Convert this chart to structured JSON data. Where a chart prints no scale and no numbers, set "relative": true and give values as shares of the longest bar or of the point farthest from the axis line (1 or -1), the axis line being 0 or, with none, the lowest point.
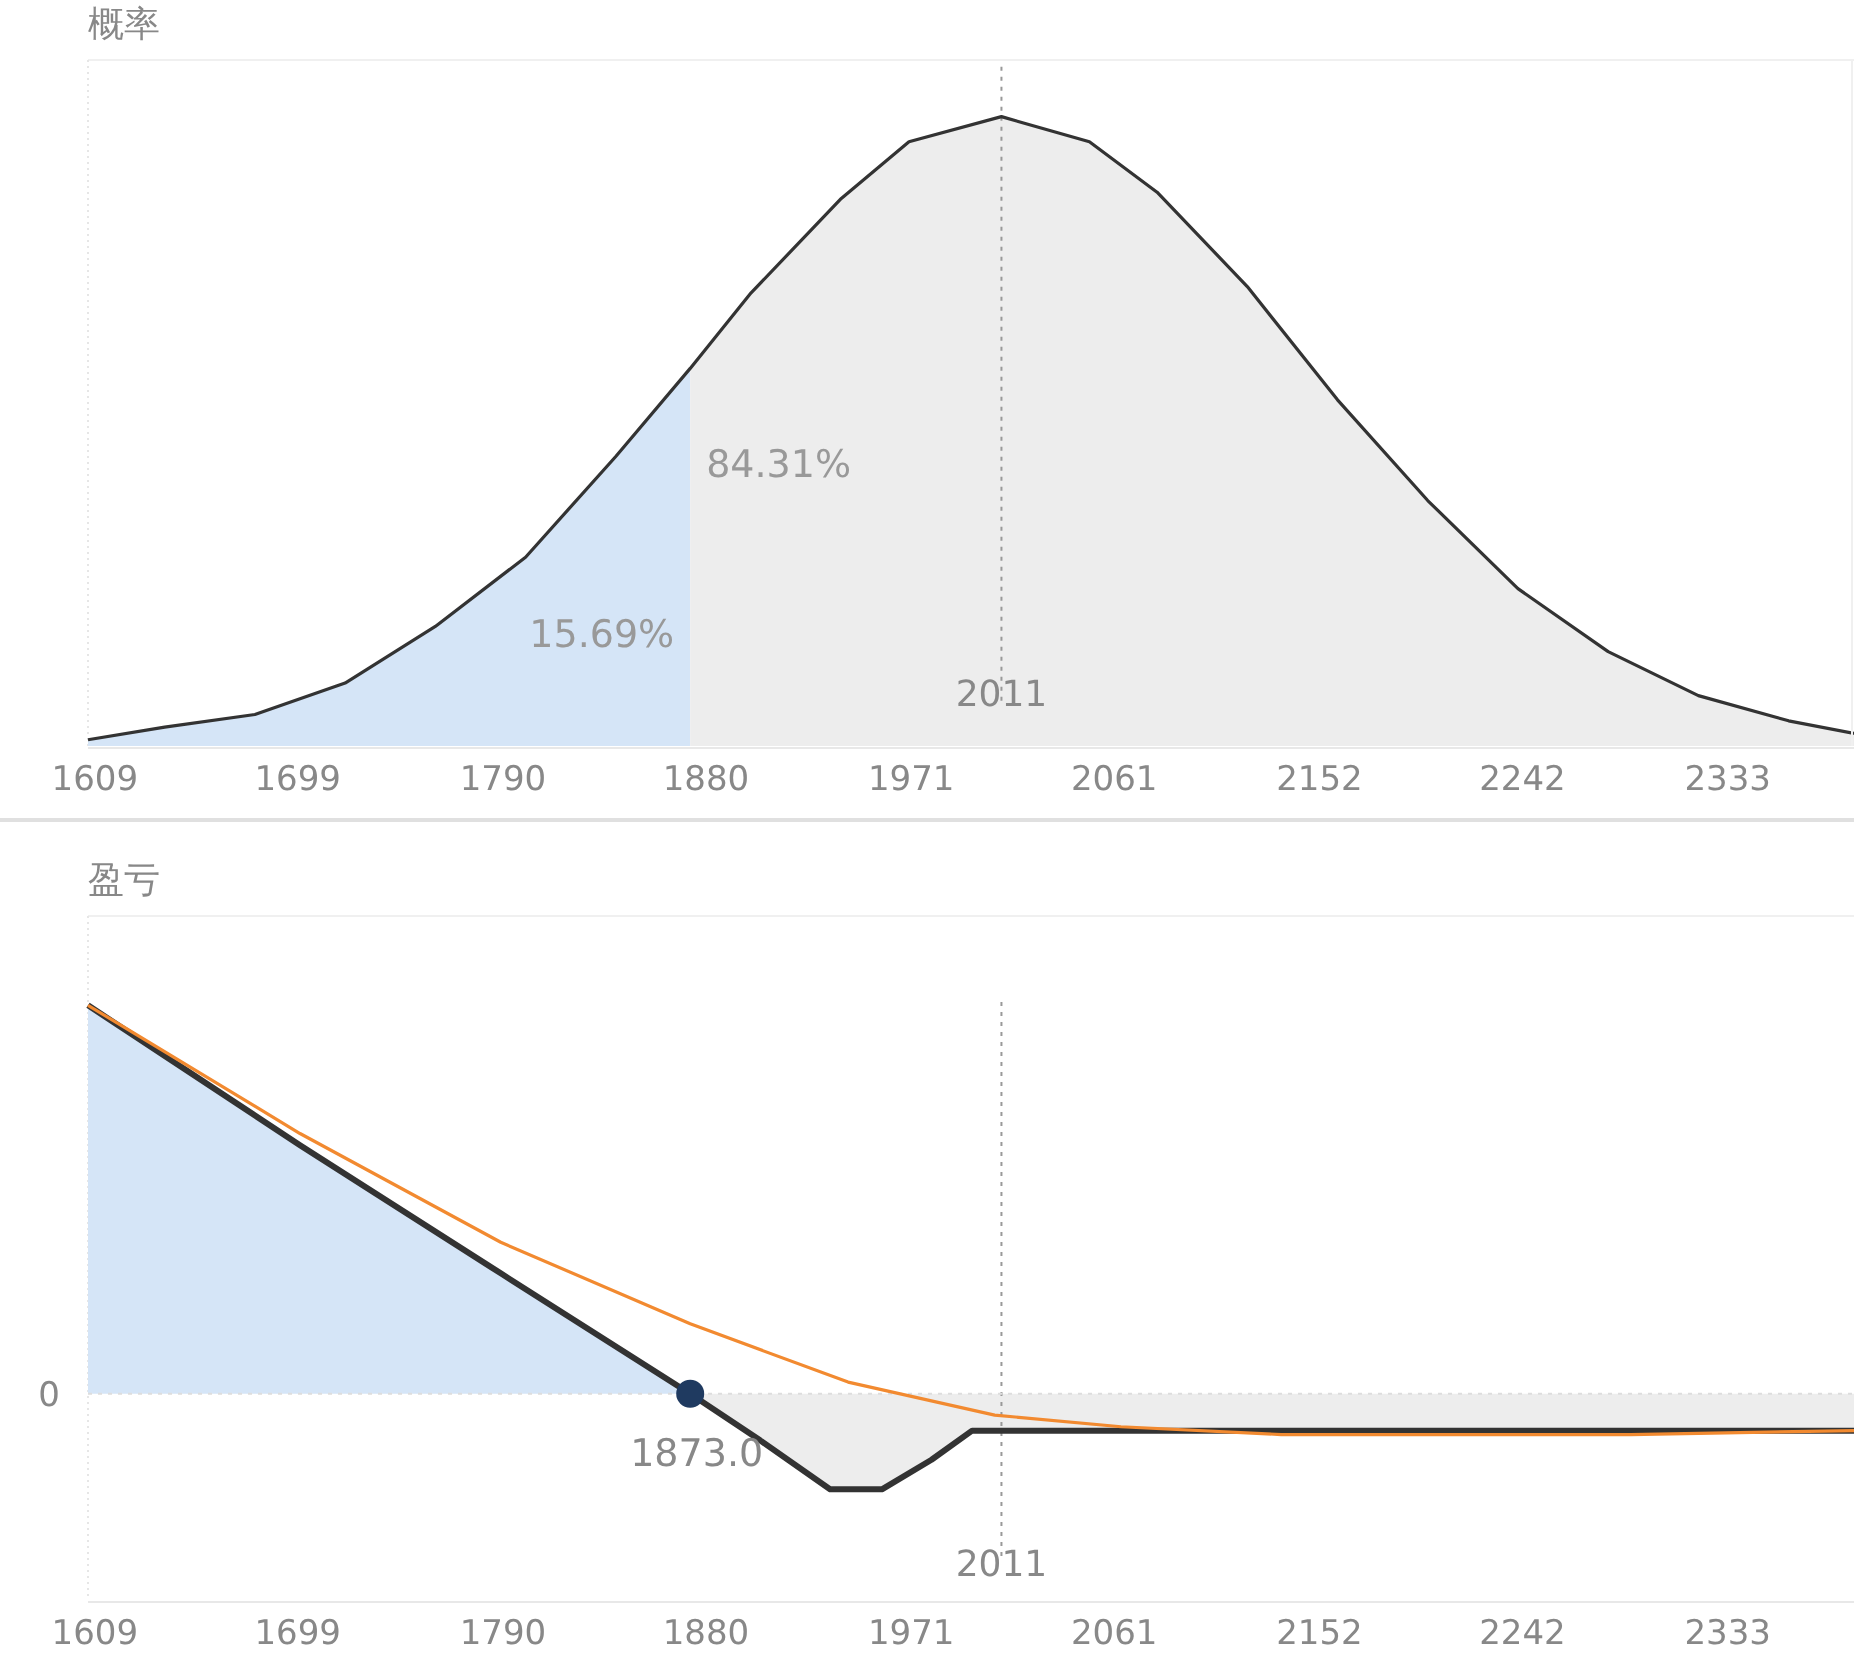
{
  "chart_data": [
    {
      "type": "area",
      "title": "概率",
      "relative": true,
      "xlim": [
        1606,
        2389
      ],
      "xticks": [
        1609,
        1699,
        1790,
        1880,
        1971,
        2061,
        2152,
        2242,
        2333
      ],
      "series": [
        {
          "color": "#d5e5f7",
          "x": [
            1606,
            1640,
            1680,
            1720,
            1760,
            1800,
            1840,
            1873
          ],
          "values": [
            0.01,
            0.03,
            0.05,
            0.1,
            0.19,
            0.3,
            0.46,
            0.6
          ]
        },
        {
          "color": "#ededed",
          "x": [
            1873,
            1900,
            1940,
            1970,
            2011,
            2050,
            2080,
            2120,
            2160,
            2200,
            2240,
            2280,
            2320,
            2360,
            2389
          ],
          "values": [
            0.6,
            0.72,
            0.87,
            0.96,
            1,
            0.96,
            0.88,
            0.73,
            0.55,
            0.39,
            0.25,
            0.15,
            0.08,
            0.04,
            0.02
          ]
        },
        {
          "type": "line",
          "color": "#333333",
          "x": [
            1606,
            1640,
            1680,
            1720,
            1760,
            1800,
            1840,
            1873,
            1900,
            1940,
            1970,
            2011,
            2050,
            2080,
            2120,
            2160,
            2200,
            2240,
            2280,
            2320,
            2360,
            2389
          ],
          "values": [
            0.01,
            0.03,
            0.05,
            0.1,
            0.19,
            0.3,
            0.46,
            0.6,
            0.72,
            0.87,
            0.96,
            1,
            0.96,
            0.88,
            0.73,
            0.55,
            0.39,
            0.25,
            0.15,
            0.08,
            0.04,
            0.02
          ]
        }
      ],
      "ref_lines": [
        {
          "axis": "x",
          "value": 2011,
          "label": "2011",
          "color": "#999999",
          "line_style": "dotted"
        }
      ],
      "annotations": [
        "15.69%",
        "84.31%"
      ]
    },
    {
      "type": "line",
      "title": "盈亏",
      "relative": true,
      "xlim": [
        1606,
        2389
      ],
      "xticks": [
        1609,
        1699,
        1790,
        1880,
        1971,
        2061,
        2152,
        2242,
        2333
      ],
      "series": [
        {
          "type": "area",
          "color": "#d5e5f7",
          "x": [
            1606,
            1700,
            1789,
            1873
          ],
          "values": [
            1,
            0.64,
            0.31,
            0
          ]
        },
        {
          "type": "area",
          "color": "#ededed",
          "x": [
            1873,
            1904,
            1935,
            1958,
            1980,
            1998,
            2389
          ],
          "values": [
            0,
            -0.12,
            -0.246,
            -0.246,
            -0.17,
            -0.095,
            -0.095
          ]
        },
        {
          "color": "#333333",
          "x": [
            1606,
            1700,
            1789,
            1873,
            1904,
            1935,
            1958,
            1980,
            1998,
            2389
          ],
          "values": [
            1,
            0.64,
            0.31,
            0,
            -0.12,
            -0.246,
            -0.246,
            -0.17,
            -0.095,
            -0.095
          ]
        },
        {
          "color": "#f28a30",
          "x": [
            1606,
            1700,
            1789,
            1873,
            1943,
            2008,
            2064,
            2135,
            2290,
            2389
          ],
          "values": [
            1,
            0.67,
            0.39,
            0.18,
            0.03,
            -0.055,
            -0.085,
            -0.105,
            -0.105,
            -0.095
          ]
        },
        {
          "type": "scatter",
          "color": "#1f3a60",
          "marker": "circle",
          "x": [
            1873
          ],
          "values": [
            0
          ]
        }
      ],
      "ref_lines": [
        {
          "axis": "x",
          "value": 2011,
          "label": "2011",
          "color": "#999999",
          "line_style": "dotted"
        },
        {
          "axis": "y",
          "value": 0,
          "label": "0",
          "color": "#dddddd",
          "line_style": "dotted"
        }
      ],
      "annotations": [
        {
          "text": "1873.0",
          "x": 1873,
          "y": 0
        }
      ]
    }
  ]
}
